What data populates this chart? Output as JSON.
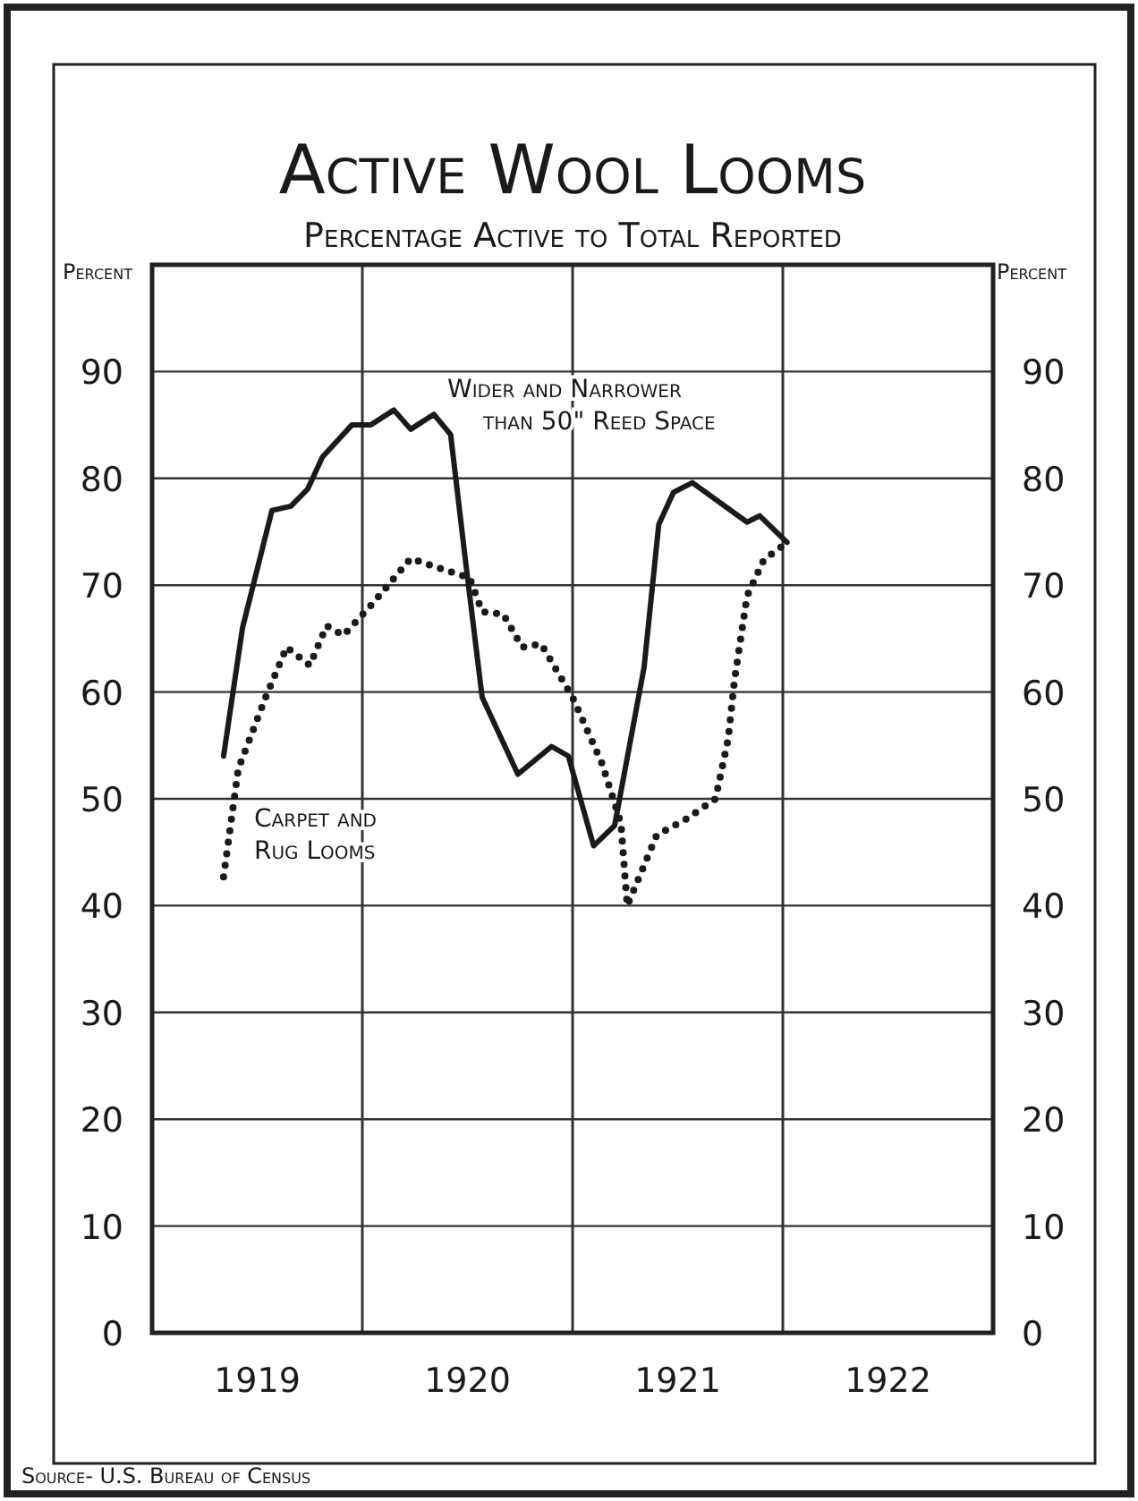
{
  "chart_data": {
    "type": "line",
    "title": "Active Wool Looms",
    "subtitle": "Percentage Active to Total Reported",
    "ylabel": "Percent",
    "y2label": "Percent",
    "xlim": [
      1919,
      1923
    ],
    "xticks": [
      {
        "value": 1919,
        "label": null
      },
      {
        "value": 1919.5,
        "label": "1919"
      },
      {
        "value": 1920,
        "label": null
      },
      {
        "value": 1920.5,
        "label": "1920"
      },
      {
        "value": 1921,
        "label": null
      },
      {
        "value": 1921.5,
        "label": "1921"
      },
      {
        "value": 1922,
        "label": null
      },
      {
        "value": 1922.5,
        "label": "1922"
      },
      {
        "value": 1923,
        "label": null
      }
    ],
    "ylim": [
      0,
      100
    ],
    "yticks": [
      0,
      10,
      20,
      30,
      40,
      50,
      60,
      70,
      80,
      90
    ],
    "y2lim": [
      0,
      100
    ],
    "y2ticks": [
      0,
      10,
      20,
      30,
      40,
      50,
      60,
      70,
      80,
      90
    ],
    "grid": true,
    "marker": "none",
    "series": [
      {
        "name": "Wider and Narrower than 50\" Reed Space",
        "color": "#1a1a1a",
        "line_style": "solid",
        "x": [
          1919.34,
          1919.43,
          1919.57,
          1919.66,
          1919.74,
          1919.81,
          1919.95,
          1920.04,
          1920.15,
          1920.23,
          1920.34,
          1920.42,
          1920.49,
          1920.57,
          1920.74,
          1920.9,
          1920.98,
          1921.1,
          1921.2,
          1921.34,
          1921.41,
          1921.48,
          1921.57,
          1921.83,
          1921.89,
          1922.02
        ],
        "values": [
          54,
          66,
          77,
          77.4,
          79,
          82,
          85,
          85,
          86.4,
          84.6,
          86,
          84.1,
          72.4,
          59.5,
          52.3,
          54.9,
          54,
          45.6,
          47.5,
          62.3,
          75.7,
          78.7,
          79.6,
          75.9,
          76.5,
          74
        ]
      },
      {
        "name": "Carpet and Rug Looms",
        "color": "#1a1a1a",
        "line_style": "dotted",
        "x": [
          1919.34,
          1919.41,
          1919.54,
          1919.64,
          1919.75,
          1919.83,
          1919.91,
          1920.05,
          1920.23,
          1920.38,
          1920.51,
          1920.57,
          1920.67,
          1920.76,
          1920.85,
          1921,
          1921.14,
          1921.23,
          1921.26,
          1921.4,
          1921.54,
          1921.68,
          1921.74,
          1921.77,
          1921.83,
          1921.91,
          1922
        ],
        "values": [
          42.7,
          52.8,
          59.5,
          64.2,
          62.5,
          66.2,
          65.3,
          68.3,
          72.5,
          71.5,
          70.7,
          67.5,
          67.3,
          64.2,
          64.5,
          59.5,
          53.3,
          47.7,
          40,
          46.6,
          48.1,
          50,
          55.6,
          61.1,
          69,
          72.4,
          73.7
        ]
      }
    ],
    "annotations": [
      "Source- U.S. Bureau of Census"
    ]
  }
}
